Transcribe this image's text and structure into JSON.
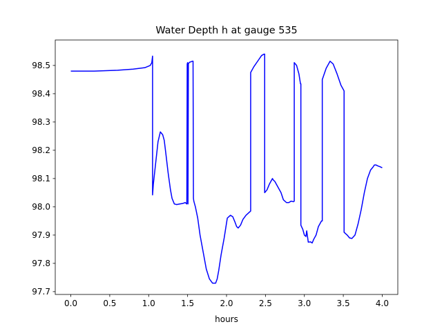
{
  "chart_data": {
    "type": "line",
    "title": "Water Depth h at gauge 535",
    "xlabel": "hours",
    "ylabel": "",
    "xlim": [
      -0.2,
      4.2
    ],
    "ylim": [
      97.69,
      98.59
    ],
    "xticks": [
      0.0,
      0.5,
      1.0,
      1.5,
      2.0,
      2.5,
      3.0,
      3.5,
      4.0
    ],
    "xtick_labels": [
      "0.0",
      "0.5",
      "1.0",
      "1.5",
      "2.0",
      "2.5",
      "3.0",
      "3.5",
      "4.0"
    ],
    "yticks": [
      97.7,
      97.8,
      97.9,
      98.0,
      98.1,
      98.2,
      98.3,
      98.4,
      98.5
    ],
    "ytick_labels": [
      "97.7",
      "97.8",
      "97.9",
      "98.0",
      "98.1",
      "98.2",
      "98.3",
      "98.4",
      "98.5"
    ],
    "grid": false,
    "series": [
      {
        "color": "#0000ff",
        "x": [
          0.0,
          0.3,
          0.6,
          0.8,
          0.95,
          1.02,
          1.04,
          1.05,
          1.05,
          1.06,
          1.08,
          1.1,
          1.12,
          1.15,
          1.18,
          1.2,
          1.22,
          1.25,
          1.28,
          1.3,
          1.33,
          1.36,
          1.4,
          1.44,
          1.47,
          1.49,
          1.495,
          1.5,
          1.505,
          1.51,
          1.515,
          1.52,
          1.53,
          1.545,
          1.56,
          1.57,
          1.575,
          1.58,
          1.6,
          1.63,
          1.66,
          1.7,
          1.74,
          1.78,
          1.82,
          1.86,
          1.88,
          1.9,
          1.93,
          1.97,
          2.01,
          2.05,
          2.08,
          2.11,
          2.13,
          2.15,
          2.18,
          2.21,
          2.25,
          2.29,
          2.31,
          2.31,
          2.35,
          2.4,
          2.45,
          2.48,
          2.49,
          2.49,
          2.52,
          2.55,
          2.57,
          2.59,
          2.6,
          2.62,
          2.65,
          2.7,
          2.73,
          2.77,
          2.8,
          2.83,
          2.86,
          2.87,
          2.87,
          2.9,
          2.93,
          2.95,
          2.955,
          2.955,
          2.98,
          3.0,
          3.02,
          3.03,
          3.05,
          3.08,
          3.1,
          3.12,
          3.15,
          3.18,
          3.22,
          3.23,
          3.23,
          3.28,
          3.33,
          3.37,
          3.42,
          3.47,
          3.5,
          3.51,
          3.51,
          3.55,
          3.58,
          3.61,
          3.65,
          3.69,
          3.73,
          3.77,
          3.81,
          3.85,
          3.88,
          3.9,
          3.92,
          3.94,
          3.97,
          4.0
        ],
        "y": [
          98.48,
          98.48,
          98.483,
          98.487,
          98.492,
          98.5,
          98.51,
          98.533,
          98.042,
          98.08,
          98.13,
          98.18,
          98.23,
          98.265,
          98.255,
          98.235,
          98.19,
          98.12,
          98.06,
          98.03,
          98.01,
          98.008,
          98.01,
          98.012,
          98.015,
          98.01,
          98.505,
          98.51,
          98.01,
          98.505,
          98.508,
          98.51,
          98.512,
          98.513,
          98.515,
          98.515,
          98.03,
          98.02,
          98.0,
          97.96,
          97.9,
          97.84,
          97.78,
          97.745,
          97.73,
          97.73,
          97.745,
          97.775,
          97.83,
          97.89,
          97.96,
          97.97,
          97.965,
          97.945,
          97.93,
          97.925,
          97.935,
          97.955,
          97.97,
          97.98,
          97.985,
          98.475,
          98.495,
          98.515,
          98.535,
          98.54,
          98.54,
          98.05,
          98.06,
          98.08,
          98.09,
          98.1,
          98.095,
          98.09,
          98.075,
          98.05,
          98.025,
          98.015,
          98.015,
          98.02,
          98.018,
          98.02,
          98.51,
          98.5,
          98.47,
          98.435,
          98.435,
          97.935,
          97.92,
          97.9,
          97.895,
          97.915,
          97.875,
          97.876,
          97.872,
          97.885,
          97.9,
          97.93,
          97.95,
          97.95,
          98.45,
          98.49,
          98.515,
          98.505,
          98.47,
          98.43,
          98.415,
          98.41,
          97.91,
          97.9,
          97.89,
          97.888,
          97.9,
          97.94,
          97.99,
          98.05,
          98.1,
          98.13,
          98.14,
          98.148,
          98.148,
          98.145,
          98.142,
          98.138
        ]
      }
    ]
  }
}
